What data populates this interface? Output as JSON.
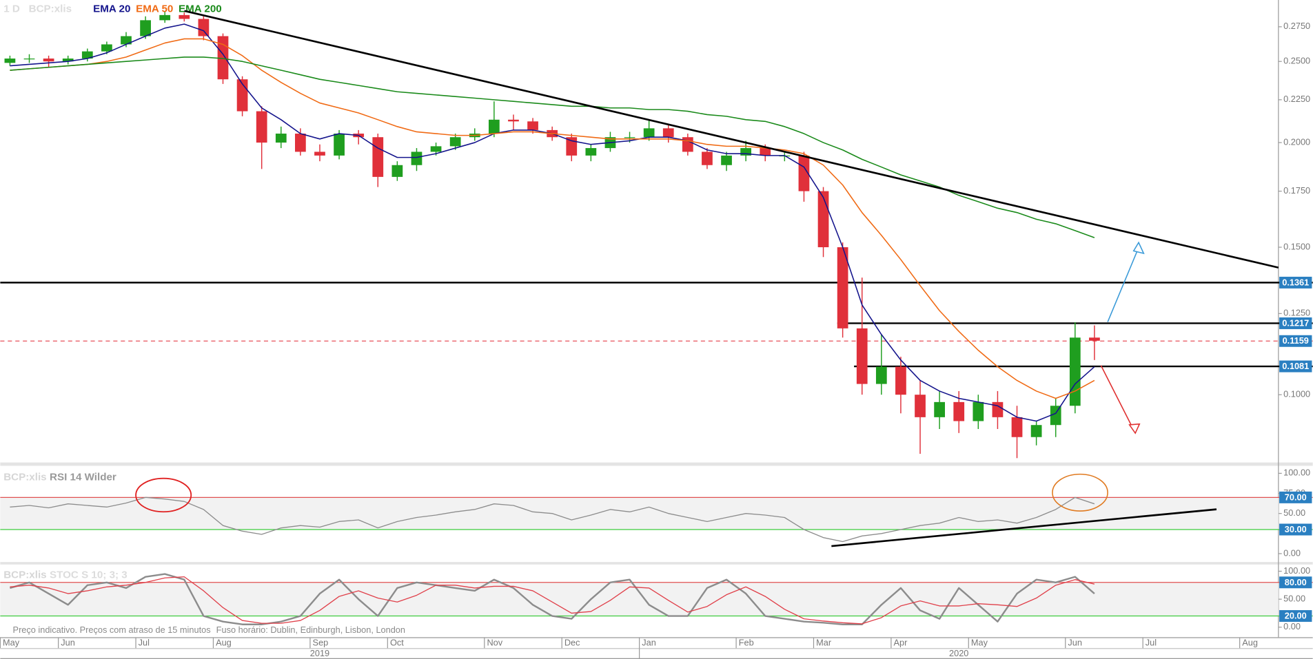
{
  "footnote": [
    "Preço indicativo. Preços com atraso de 15 minutos",
    "Fuso horário: Dublin, Edinburgh, Lisbon, London"
  ],
  "chart_data": [
    {
      "type": "candlestick",
      "interval": "1 D",
      "symbol": "BCP:xlis",
      "categories": [
        "May",
        null,
        null,
        "Jun",
        null,
        null,
        null,
        "Jul",
        null,
        null,
        null,
        "Aug",
        null,
        null,
        null,
        null,
        "Sep",
        null,
        null,
        null,
        "Oct",
        null,
        null,
        null,
        null,
        "Nov",
        null,
        null,
        null,
        "Dec",
        null,
        null,
        null,
        "Jan",
        null,
        null,
        null,
        null,
        "Feb",
        null,
        null,
        null,
        "Mar",
        null,
        null,
        null,
        "Apr",
        null,
        null,
        null,
        "May",
        null,
        null,
        null,
        null,
        "Jun",
        null,
        null,
        null,
        "Jul",
        null,
        null,
        null,
        null,
        "Aug",
        null
      ],
      "years": [
        "2019",
        "2020"
      ],
      "up_color": "#1f9e1f",
      "down_color": "#e0303a",
      "open": [
        0.249,
        0.252,
        0.252,
        0.25,
        0.252,
        0.257,
        0.262,
        0.268,
        0.28,
        0.284,
        0.281,
        0.268,
        0.238,
        0.218,
        0.2,
        0.205,
        0.195,
        0.193,
        0.205,
        0.203,
        0.182,
        0.188,
        0.195,
        0.198,
        0.203,
        0.205,
        0.213,
        0.212,
        0.207,
        0.203,
        0.193,
        0.197,
        0.203,
        0.203,
        0.208,
        0.203,
        0.195,
        0.188,
        0.193,
        0.197,
        0.193,
        0.193,
        0.175,
        0.15,
        0.12,
        0.103,
        0.108,
        0.1,
        0.094,
        0.098,
        0.093,
        0.098,
        0.094,
        0.089,
        0.092,
        0.097,
        0.117,
        null,
        null,
        null,
        null,
        null,
        null,
        null,
        null,
        null
      ],
      "high": [
        0.254,
        0.255,
        0.254,
        0.254,
        0.259,
        0.264,
        0.271,
        0.283,
        0.287,
        0.286,
        0.283,
        0.27,
        0.24,
        0.221,
        0.209,
        0.208,
        0.199,
        0.207,
        0.207,
        0.205,
        0.19,
        0.197,
        0.2,
        0.205,
        0.208,
        0.224,
        0.216,
        0.214,
        0.209,
        0.205,
        0.199,
        0.206,
        0.206,
        0.213,
        0.21,
        0.205,
        0.197,
        0.195,
        0.201,
        0.199,
        0.195,
        0.195,
        0.177,
        0.152,
        0.138,
        0.118,
        0.111,
        0.104,
        0.101,
        0.101,
        0.1,
        0.101,
        0.097,
        0.093,
        0.099,
        0.122,
        0.121,
        null,
        null,
        null,
        null,
        null,
        null,
        null,
        null,
        null
      ],
      "low": [
        0.247,
        0.249,
        0.246,
        0.248,
        0.25,
        0.255,
        0.26,
        0.266,
        0.278,
        0.279,
        0.265,
        0.235,
        0.215,
        0.186,
        0.197,
        0.193,
        0.19,
        0.191,
        0.199,
        0.177,
        0.18,
        0.185,
        0.193,
        0.196,
        0.201,
        0.203,
        0.207,
        0.205,
        0.201,
        0.19,
        0.19,
        0.195,
        0.2,
        0.201,
        0.2,
        0.193,
        0.186,
        0.185,
        0.19,
        0.19,
        0.19,
        0.17,
        0.146,
        0.117,
        0.1,
        0.1,
        0.095,
        0.085,
        0.091,
        0.09,
        0.091,
        0.091,
        0.084,
        0.087,
        0.089,
        0.095,
        0.11,
        null,
        null,
        null,
        null,
        null,
        null,
        null,
        null,
        null
      ],
      "close": [
        0.252,
        0.252,
        0.25,
        0.252,
        0.257,
        0.262,
        0.268,
        0.28,
        0.284,
        0.281,
        0.268,
        0.238,
        0.218,
        0.2,
        0.205,
        0.195,
        0.193,
        0.205,
        0.203,
        0.182,
        0.188,
        0.195,
        0.198,
        0.203,
        0.205,
        0.213,
        0.212,
        0.207,
        0.203,
        0.193,
        0.197,
        0.203,
        0.203,
        0.208,
        0.203,
        0.195,
        0.188,
        0.193,
        0.197,
        0.193,
        0.193,
        0.175,
        0.15,
        0.12,
        0.103,
        0.108,
        0.1,
        0.094,
        0.098,
        0.093,
        0.098,
        0.094,
        0.089,
        0.092,
        0.097,
        0.117,
        0.116,
        null,
        null,
        null,
        null,
        null,
        null,
        null,
        null,
        null
      ],
      "series": [
        {
          "name": "EMA 20",
          "color": "#14148c",
          "values": [
            0.247,
            0.248,
            0.249,
            0.25,
            0.252,
            0.256,
            0.262,
            0.268,
            0.274,
            0.277,
            0.272,
            0.255,
            0.235,
            0.22,
            0.213,
            0.205,
            0.202,
            0.205,
            0.204,
            0.197,
            0.192,
            0.192,
            0.194,
            0.197,
            0.2,
            0.205,
            0.207,
            0.207,
            0.205,
            0.201,
            0.199,
            0.2,
            0.201,
            0.203,
            0.203,
            0.201,
            0.196,
            0.194,
            0.194,
            0.193,
            0.193,
            0.187,
            0.172,
            0.15,
            0.128,
            0.118,
            0.11,
            0.104,
            0.101,
            0.099,
            0.098,
            0.097,
            0.094,
            0.093,
            0.095,
            0.103,
            0.108,
            null,
            null,
            null,
            null,
            null,
            null,
            null,
            null,
            null
          ]
        },
        {
          "name": "EMA 50",
          "color": "#f06a14",
          "values": [
            0.244,
            0.245,
            0.246,
            0.247,
            0.248,
            0.25,
            0.253,
            0.258,
            0.263,
            0.266,
            0.266,
            0.262,
            0.254,
            0.244,
            0.236,
            0.229,
            0.223,
            0.22,
            0.217,
            0.213,
            0.209,
            0.206,
            0.205,
            0.204,
            0.204,
            0.205,
            0.206,
            0.206,
            0.205,
            0.204,
            0.203,
            0.202,
            0.202,
            0.202,
            0.202,
            0.201,
            0.199,
            0.198,
            0.198,
            0.197,
            0.196,
            0.194,
            0.188,
            0.178,
            0.165,
            0.155,
            0.145,
            0.135,
            0.126,
            0.119,
            0.113,
            0.108,
            0.104,
            0.101,
            0.099,
            0.101,
            0.104,
            null,
            null,
            null,
            null,
            null,
            null,
            null,
            null,
            null
          ]
        },
        {
          "name": "EMA 200",
          "color": "#1a8a1a",
          "values": [
            0.244,
            0.245,
            0.246,
            0.247,
            0.248,
            0.249,
            0.25,
            0.251,
            0.252,
            0.253,
            0.253,
            0.252,
            0.25,
            0.247,
            0.244,
            0.241,
            0.238,
            0.236,
            0.234,
            0.232,
            0.23,
            0.229,
            0.228,
            0.227,
            0.226,
            0.225,
            0.224,
            0.223,
            0.222,
            0.221,
            0.221,
            0.22,
            0.22,
            0.219,
            0.219,
            0.218,
            0.216,
            0.215,
            0.213,
            0.212,
            0.209,
            0.205,
            0.2,
            0.196,
            0.191,
            0.187,
            0.183,
            0.18,
            0.177,
            0.173,
            0.17,
            0.167,
            0.165,
            0.162,
            0.16,
            0.157,
            0.154,
            null,
            null,
            null,
            null,
            null,
            null,
            null,
            null,
            null
          ]
        }
      ],
      "ylim": [
        0.083,
        0.296
      ],
      "log_scale": true,
      "yticks": [
        {
          "value": 0.1,
          "label": "0.1000"
        },
        {
          "value": 0.125,
          "label": "0.1250"
        },
        {
          "value": 0.15,
          "label": "0.1500"
        },
        {
          "value": 0.175,
          "label": "0.1750"
        },
        {
          "value": 0.2,
          "label": "0.2000"
        },
        {
          "value": 0.225,
          "label": "0.2250"
        },
        {
          "value": 0.25,
          "label": "0.2500"
        },
        {
          "value": 0.275,
          "label": "0.2750"
        }
      ],
      "levels": [
        {
          "value": 0.1361,
          "color": "#000000"
        },
        {
          "value": 0.1217,
          "color": "#000000"
        },
        {
          "value": 0.1159,
          "color": "#e8505a",
          "dashed": true
        },
        {
          "value": 0.1081,
          "color": "#000000"
        }
      ],
      "label_color": "#2a7fc1"
    },
    {
      "type": "line",
      "symbol": "BCP:xlis",
      "title": "RSI 14 Wilder",
      "color": "#8c8c8c",
      "values": [
        58,
        60,
        57,
        62,
        60,
        58,
        63,
        70,
        68,
        65,
        55,
        35,
        28,
        24,
        32,
        35,
        33,
        40,
        42,
        32,
        40,
        45,
        48,
        52,
        55,
        62,
        60,
        52,
        50,
        42,
        48,
        55,
        52,
        58,
        50,
        45,
        40,
        45,
        50,
        48,
        45,
        30,
        20,
        15,
        22,
        25,
        30,
        35,
        38,
        45,
        40,
        42,
        38,
        45,
        55,
        70,
        62,
        null,
        null,
        null,
        null,
        null,
        null,
        null,
        null,
        null
      ],
      "ylim": [
        -10.4,
        108.3
      ],
      "yticks": [
        {
          "value": 0,
          "label": "0.00"
        },
        {
          "value": 50,
          "label": "50.00"
        },
        {
          "value": 75,
          "label": "75.00"
        },
        {
          "value": 100,
          "label": "100.00"
        }
      ],
      "levels": [
        {
          "value": 70,
          "label": "70.00",
          "color": "#e05050"
        },
        {
          "value": 30,
          "label": "30.00",
          "color": "#3ccc3c"
        }
      ],
      "label_color": "#2a7fc1"
    },
    {
      "type": "line",
      "symbol": "BCP:xlis",
      "title": "STOC S 10; 3; 3",
      "series": [
        {
          "color": "#8c8c8c",
          "values": [
            70,
            80,
            60,
            40,
            75,
            80,
            70,
            90,
            95,
            85,
            20,
            10,
            5,
            5,
            10,
            20,
            60,
            85,
            50,
            20,
            70,
            80,
            75,
            70,
            65,
            85,
            70,
            40,
            20,
            15,
            50,
            80,
            85,
            40,
            20,
            20,
            70,
            85,
            60,
            20,
            15,
            10,
            8,
            5,
            5,
            40,
            70,
            30,
            15,
            70,
            40,
            10,
            60,
            85,
            80,
            90,
            60,
            null,
            null,
            null,
            null,
            null,
            null,
            null,
            null,
            null
          ]
        },
        {
          "color": "#e0404a",
          "values": [
            72,
            75,
            70,
            60,
            65,
            72,
            75,
            80,
            88,
            90,
            65,
            35,
            12,
            7,
            7,
            12,
            30,
            55,
            65,
            52,
            45,
            57,
            75,
            75,
            70,
            73,
            73,
            65,
            45,
            25,
            28,
            48,
            72,
            70,
            48,
            27,
            37,
            58,
            72,
            55,
            32,
            15,
            11,
            8,
            6,
            17,
            38,
            47,
            38,
            38,
            42,
            40,
            37,
            52,
            75,
            85,
            77,
            null,
            null,
            null,
            null,
            null,
            null,
            null,
            null,
            null
          ]
        }
      ],
      "ylim": [
        -18,
        112
      ],
      "yticks": [
        {
          "value": 0,
          "label": "0.00"
        },
        {
          "value": 50,
          "label": "50.00"
        },
        {
          "value": 100,
          "label": "100.00"
        }
      ],
      "levels": [
        {
          "value": 80,
          "label": "80.00",
          "color": "#e05050"
        },
        {
          "value": 20,
          "label": "20.00",
          "color": "#3ccc3c"
        }
      ],
      "label_color": "#2a7fc1"
    }
  ]
}
